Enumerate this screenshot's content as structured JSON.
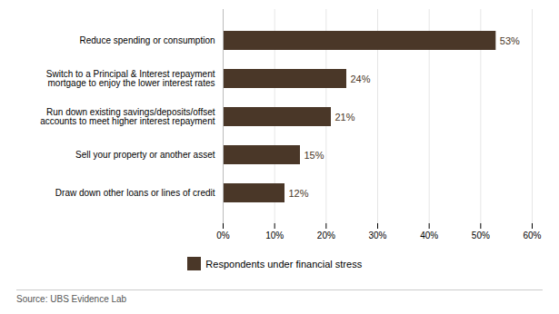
{
  "chart_data": {
    "type": "bar",
    "orientation": "horizontal",
    "categories": [
      "Draw down other loans or lines of credit",
      "Sell your property or another asset",
      "Run down existing savings/deposits/offset\naccounts to meet higher interest repayment",
      "Switch to a Principal & Interest repayment\nmortgage to enjoy the lower interest rates",
      "Reduce spending or consumption"
    ],
    "series": [
      {
        "name": "Respondents under financial stress",
        "color": "#4a3728",
        "values": [
          12,
          15,
          21,
          24,
          53
        ]
      }
    ],
    "data_labels": true,
    "value_labels": [
      "12%",
      "15%",
      "21%",
      "24%",
      "53%"
    ],
    "xlim": [
      0,
      60
    ],
    "xticks": [
      {
        "value": 0,
        "label": "0%"
      },
      {
        "value": 10,
        "label": "10%"
      },
      {
        "value": 20,
        "label": "20%"
      },
      {
        "value": 30,
        "label": "30%"
      },
      {
        "value": 40,
        "label": "40%"
      },
      {
        "value": 50,
        "label": "50%"
      },
      {
        "value": 60,
        "label": "60%"
      }
    ],
    "grid": true,
    "legend": "bottom",
    "caption": "Source:  UBS Evidence Lab"
  }
}
